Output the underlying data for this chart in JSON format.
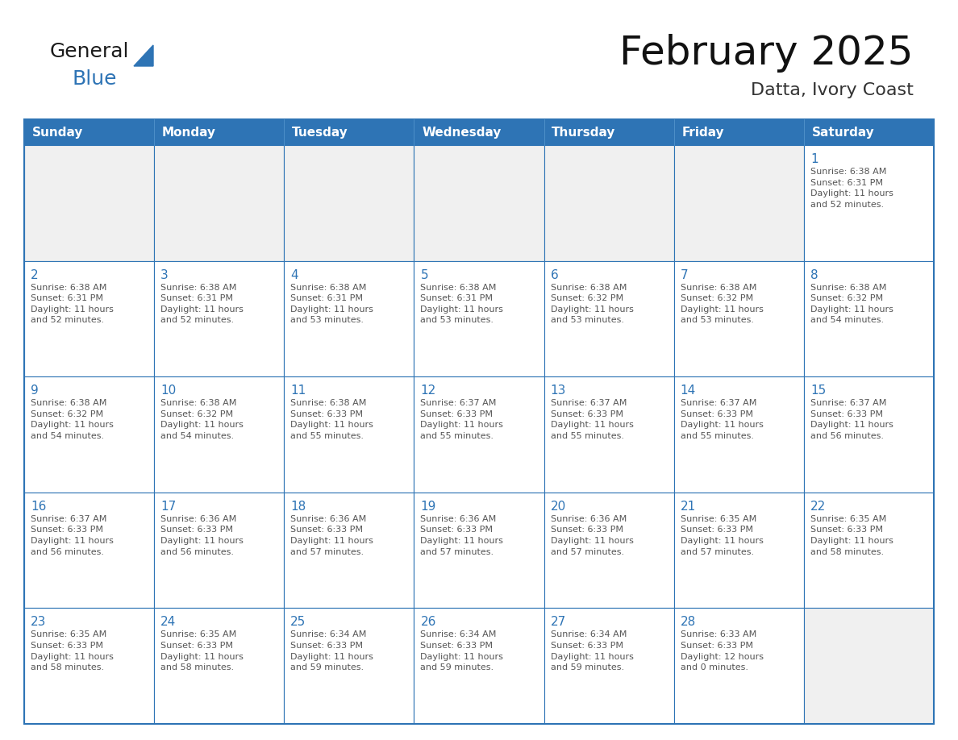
{
  "title": "February 2025",
  "subtitle": "Datta, Ivory Coast",
  "header_color": "#2e74b5",
  "header_text_color": "#ffffff",
  "day_number_color": "#2e74b5",
  "text_color": "#555555",
  "border_color": "#2e74b5",
  "empty_cell_color": "#f0f0f0",
  "filled_cell_color": "#ffffff",
  "days_of_week": [
    "Sunday",
    "Monday",
    "Tuesday",
    "Wednesday",
    "Thursday",
    "Friday",
    "Saturday"
  ],
  "weeks": [
    [
      {
        "day": 0,
        "info": ""
      },
      {
        "day": 0,
        "info": ""
      },
      {
        "day": 0,
        "info": ""
      },
      {
        "day": 0,
        "info": ""
      },
      {
        "day": 0,
        "info": ""
      },
      {
        "day": 0,
        "info": ""
      },
      {
        "day": 1,
        "info": "Sunrise: 6:38 AM\nSunset: 6:31 PM\nDaylight: 11 hours\nand 52 minutes."
      }
    ],
    [
      {
        "day": 2,
        "info": "Sunrise: 6:38 AM\nSunset: 6:31 PM\nDaylight: 11 hours\nand 52 minutes."
      },
      {
        "day": 3,
        "info": "Sunrise: 6:38 AM\nSunset: 6:31 PM\nDaylight: 11 hours\nand 52 minutes."
      },
      {
        "day": 4,
        "info": "Sunrise: 6:38 AM\nSunset: 6:31 PM\nDaylight: 11 hours\nand 53 minutes."
      },
      {
        "day": 5,
        "info": "Sunrise: 6:38 AM\nSunset: 6:31 PM\nDaylight: 11 hours\nand 53 minutes."
      },
      {
        "day": 6,
        "info": "Sunrise: 6:38 AM\nSunset: 6:32 PM\nDaylight: 11 hours\nand 53 minutes."
      },
      {
        "day": 7,
        "info": "Sunrise: 6:38 AM\nSunset: 6:32 PM\nDaylight: 11 hours\nand 53 minutes."
      },
      {
        "day": 8,
        "info": "Sunrise: 6:38 AM\nSunset: 6:32 PM\nDaylight: 11 hours\nand 54 minutes."
      }
    ],
    [
      {
        "day": 9,
        "info": "Sunrise: 6:38 AM\nSunset: 6:32 PM\nDaylight: 11 hours\nand 54 minutes."
      },
      {
        "day": 10,
        "info": "Sunrise: 6:38 AM\nSunset: 6:32 PM\nDaylight: 11 hours\nand 54 minutes."
      },
      {
        "day": 11,
        "info": "Sunrise: 6:38 AM\nSunset: 6:33 PM\nDaylight: 11 hours\nand 55 minutes."
      },
      {
        "day": 12,
        "info": "Sunrise: 6:37 AM\nSunset: 6:33 PM\nDaylight: 11 hours\nand 55 minutes."
      },
      {
        "day": 13,
        "info": "Sunrise: 6:37 AM\nSunset: 6:33 PM\nDaylight: 11 hours\nand 55 minutes."
      },
      {
        "day": 14,
        "info": "Sunrise: 6:37 AM\nSunset: 6:33 PM\nDaylight: 11 hours\nand 55 minutes."
      },
      {
        "day": 15,
        "info": "Sunrise: 6:37 AM\nSunset: 6:33 PM\nDaylight: 11 hours\nand 56 minutes."
      }
    ],
    [
      {
        "day": 16,
        "info": "Sunrise: 6:37 AM\nSunset: 6:33 PM\nDaylight: 11 hours\nand 56 minutes."
      },
      {
        "day": 17,
        "info": "Sunrise: 6:36 AM\nSunset: 6:33 PM\nDaylight: 11 hours\nand 56 minutes."
      },
      {
        "day": 18,
        "info": "Sunrise: 6:36 AM\nSunset: 6:33 PM\nDaylight: 11 hours\nand 57 minutes."
      },
      {
        "day": 19,
        "info": "Sunrise: 6:36 AM\nSunset: 6:33 PM\nDaylight: 11 hours\nand 57 minutes."
      },
      {
        "day": 20,
        "info": "Sunrise: 6:36 AM\nSunset: 6:33 PM\nDaylight: 11 hours\nand 57 minutes."
      },
      {
        "day": 21,
        "info": "Sunrise: 6:35 AM\nSunset: 6:33 PM\nDaylight: 11 hours\nand 57 minutes."
      },
      {
        "day": 22,
        "info": "Sunrise: 6:35 AM\nSunset: 6:33 PM\nDaylight: 11 hours\nand 58 minutes."
      }
    ],
    [
      {
        "day": 23,
        "info": "Sunrise: 6:35 AM\nSunset: 6:33 PM\nDaylight: 11 hours\nand 58 minutes."
      },
      {
        "day": 24,
        "info": "Sunrise: 6:35 AM\nSunset: 6:33 PM\nDaylight: 11 hours\nand 58 minutes."
      },
      {
        "day": 25,
        "info": "Sunrise: 6:34 AM\nSunset: 6:33 PM\nDaylight: 11 hours\nand 59 minutes."
      },
      {
        "day": 26,
        "info": "Sunrise: 6:34 AM\nSunset: 6:33 PM\nDaylight: 11 hours\nand 59 minutes."
      },
      {
        "day": 27,
        "info": "Sunrise: 6:34 AM\nSunset: 6:33 PM\nDaylight: 11 hours\nand 59 minutes."
      },
      {
        "day": 28,
        "info": "Sunrise: 6:33 AM\nSunset: 6:33 PM\nDaylight: 12 hours\nand 0 minutes."
      },
      {
        "day": 0,
        "info": ""
      }
    ]
  ],
  "logo_general_color": "#1a1a1a",
  "logo_blue_color": "#2e74b5",
  "logo_triangle_color": "#2e74b5",
  "title_fontsize": 36,
  "subtitle_fontsize": 16,
  "header_fontsize": 11,
  "day_num_fontsize": 11,
  "info_fontsize": 8
}
